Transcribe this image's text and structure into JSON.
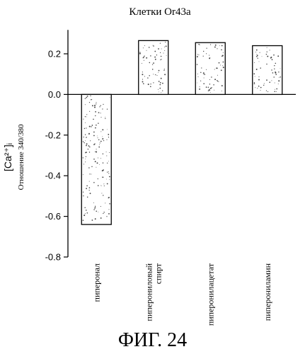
{
  "chart_data": {
    "type": "bar",
    "title": "Клетки Or43a",
    "ylabel": "[Ca²⁺]ᵢ",
    "ylabel_sub": "Отношение 340/380",
    "xlabel": "",
    "ylim": [
      -0.8,
      0.3
    ],
    "yticks": [
      -0.8,
      -0.6,
      -0.4,
      -0.2,
      0.0,
      0.2
    ],
    "ytick_labels": [
      "-0.8",
      "-0.6",
      "-0.4",
      "-0.2",
      "0.0",
      "0.2"
    ],
    "categories": [
      "пиперонал",
      [
        "пиперониловый",
        "спирт"
      ],
      "пиперонилацетат",
      "пиперониламин"
    ],
    "values": [
      -0.64,
      0.265,
      0.255,
      0.24
    ],
    "grid": false,
    "legend": "none"
  },
  "figure": {
    "caption": "ФИГ. 24"
  }
}
